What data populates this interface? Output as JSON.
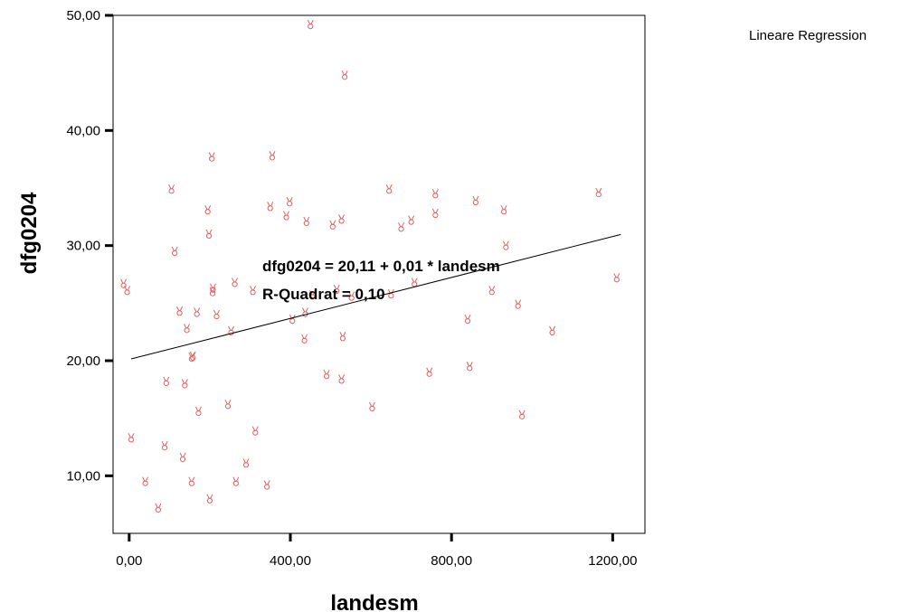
{
  "chart_data": {
    "type": "scatter",
    "xlabel": "landesm",
    "ylabel": "dfg0204",
    "xlim": [
      -40,
      1280
    ],
    "ylim": [
      5,
      50
    ],
    "xticks": [
      "0,00",
      "400,00",
      "800,00",
      "1200,00"
    ],
    "xtick_values": [
      0,
      400,
      800,
      1200
    ],
    "yticks": [
      "10,00",
      "20,00",
      "30,00",
      "40,00",
      "50,00"
    ],
    "ytick_values": [
      10,
      20,
      30,
      40,
      50
    ],
    "legend": {
      "label": "Lineare Regression",
      "placement": "top-right"
    },
    "annotation_equation": "dfg0204 = 20,11 + 0,01 * landesm",
    "annotation_r2": "R-Quadrat = 0,10",
    "marker_color": "#e06060",
    "fit_line": {
      "intercept": 20.11,
      "slope": 0.0089,
      "x_range": [
        5,
        1220
      ],
      "color": "#000000"
    },
    "points": [
      {
        "x": -14,
        "y": 26.7
      },
      {
        "x": -5,
        "y": 26.1
      },
      {
        "x": 5,
        "y": 13.3
      },
      {
        "x": 40,
        "y": 9.5
      },
      {
        "x": 72,
        "y": 7.2
      },
      {
        "x": 88,
        "y": 12.6
      },
      {
        "x": 92,
        "y": 18.2
      },
      {
        "x": 105,
        "y": 34.9
      },
      {
        "x": 113,
        "y": 29.5
      },
      {
        "x": 125,
        "y": 24.3
      },
      {
        "x": 133,
        "y": 11.6
      },
      {
        "x": 138,
        "y": 18.0
      },
      {
        "x": 143,
        "y": 22.8
      },
      {
        "x": 155,
        "y": 20.3
      },
      {
        "x": 158,
        "y": 20.4
      },
      {
        "x": 155,
        "y": 9.5
      },
      {
        "x": 168,
        "y": 24.2
      },
      {
        "x": 172,
        "y": 15.6
      },
      {
        "x": 195,
        "y": 33.1
      },
      {
        "x": 198,
        "y": 31.0
      },
      {
        "x": 200,
        "y": 8.0
      },
      {
        "x": 205,
        "y": 37.7
      },
      {
        "x": 207,
        "y": 26.0
      },
      {
        "x": 208,
        "y": 26.3
      },
      {
        "x": 217,
        "y": 24.0
      },
      {
        "x": 245,
        "y": 16.2
      },
      {
        "x": 253,
        "y": 22.6
      },
      {
        "x": 262,
        "y": 26.8
      },
      {
        "x": 265,
        "y": 9.5
      },
      {
        "x": 290,
        "y": 11.1
      },
      {
        "x": 307,
        "y": 26.1
      },
      {
        "x": 313,
        "y": 13.9
      },
      {
        "x": 342,
        "y": 9.2
      },
      {
        "x": 350,
        "y": 33.4
      },
      {
        "x": 355,
        "y": 37.8
      },
      {
        "x": 390,
        "y": 32.6
      },
      {
        "x": 398,
        "y": 33.8
      },
      {
        "x": 405,
        "y": 23.6
      },
      {
        "x": 435,
        "y": 21.9
      },
      {
        "x": 437,
        "y": 24.2
      },
      {
        "x": 440,
        "y": 32.1
      },
      {
        "x": 450,
        "y": 49.2
      },
      {
        "x": 455,
        "y": 25.7
      },
      {
        "x": 490,
        "y": 18.8
      },
      {
        "x": 505,
        "y": 31.8
      },
      {
        "x": 515,
        "y": 26.2
      },
      {
        "x": 527,
        "y": 32.3
      },
      {
        "x": 527,
        "y": 18.4
      },
      {
        "x": 530,
        "y": 22.1
      },
      {
        "x": 535,
        "y": 44.8
      },
      {
        "x": 552,
        "y": 25.6
      },
      {
        "x": 603,
        "y": 16.0
      },
      {
        "x": 645,
        "y": 34.9
      },
      {
        "x": 650,
        "y": 25.8
      },
      {
        "x": 675,
        "y": 31.6
      },
      {
        "x": 700,
        "y": 32.2
      },
      {
        "x": 708,
        "y": 26.8
      },
      {
        "x": 745,
        "y": 19.0
      },
      {
        "x": 760,
        "y": 34.5
      },
      {
        "x": 760,
        "y": 32.8
      },
      {
        "x": 840,
        "y": 23.6
      },
      {
        "x": 845,
        "y": 19.5
      },
      {
        "x": 860,
        "y": 33.9
      },
      {
        "x": 900,
        "y": 26.1
      },
      {
        "x": 930,
        "y": 33.1
      },
      {
        "x": 935,
        "y": 30.0
      },
      {
        "x": 965,
        "y": 24.9
      },
      {
        "x": 975,
        "y": 15.3
      },
      {
        "x": 1050,
        "y": 22.6
      },
      {
        "x": 1165,
        "y": 34.6
      },
      {
        "x": 1210,
        "y": 27.2
      }
    ]
  }
}
